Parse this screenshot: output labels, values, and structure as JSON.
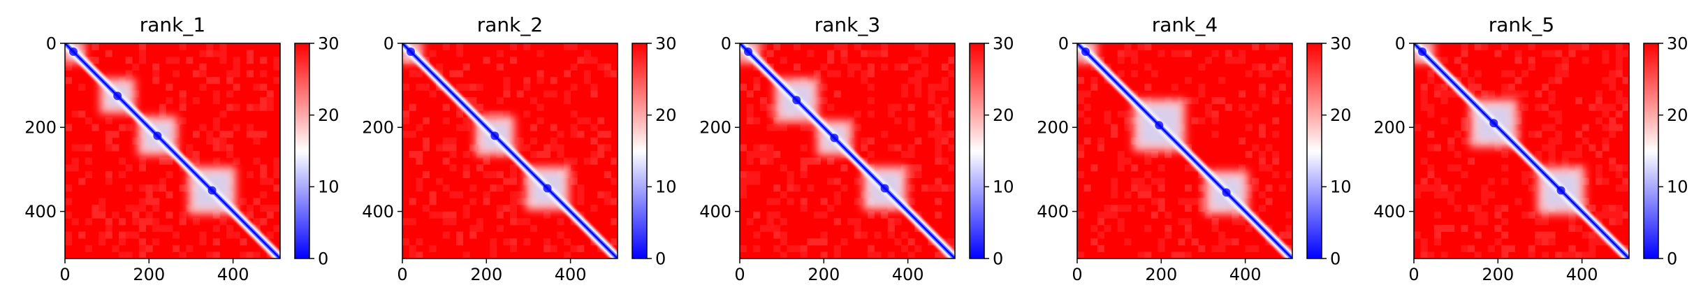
{
  "chart_data": [
    {
      "type": "heatmap",
      "title": "rank_1",
      "matrix_size": 512,
      "xlim": [
        0,
        512
      ],
      "ylim": [
        512,
        0
      ],
      "xticks": [
        0,
        200,
        400
      ],
      "yticks": [
        0,
        200,
        400
      ],
      "colorbar": {
        "ticks": [
          0,
          10,
          20,
          30
        ],
        "range": [
          0,
          30
        ],
        "colormap": "bwr"
      },
      "low_value_blocks": [
        [
          0,
          40
        ],
        [
          90,
          160
        ],
        [
          180,
          260
        ],
        [
          300,
          400
        ]
      ],
      "diagonal_value": 0,
      "off_diagonal_value": 30
    },
    {
      "type": "heatmap",
      "title": "rank_2",
      "matrix_size": 512,
      "xlim": [
        0,
        512
      ],
      "ylim": [
        512,
        0
      ],
      "xticks": [
        0,
        200,
        400
      ],
      "yticks": [
        0,
        200,
        400
      ],
      "colorbar": {
        "ticks": [
          0,
          10,
          20,
          30
        ],
        "range": [
          0,
          30
        ],
        "colormap": "bwr"
      },
      "low_value_blocks": [
        [
          0,
          40
        ],
        [
          180,
          260
        ],
        [
          300,
          390
        ]
      ],
      "diagonal_value": 0,
      "off_diagonal_value": 30
    },
    {
      "type": "heatmap",
      "title": "rank_3",
      "matrix_size": 512,
      "xlim": [
        0,
        512
      ],
      "ylim": [
        512,
        0
      ],
      "xticks": [
        0,
        200,
        400
      ],
      "yticks": [
        0,
        200,
        400
      ],
      "colorbar": {
        "ticks": [
          0,
          10,
          20,
          30
        ],
        "range": [
          0,
          30
        ],
        "colormap": "bwr"
      },
      "low_value_blocks": [
        [
          0,
          40
        ],
        [
          90,
          180
        ],
        [
          190,
          260
        ],
        [
          300,
          390
        ]
      ],
      "diagonal_value": 0,
      "off_diagonal_value": 30
    },
    {
      "type": "heatmap",
      "title": "rank_4",
      "matrix_size": 512,
      "xlim": [
        0,
        512
      ],
      "ylim": [
        512,
        0
      ],
      "xticks": [
        0,
        200,
        400
      ],
      "yticks": [
        0,
        200,
        400
      ],
      "colorbar": {
        "ticks": [
          0,
          10,
          20,
          30
        ],
        "range": [
          0,
          30
        ],
        "colormap": "bwr"
      },
      "low_value_blocks": [
        [
          0,
          40
        ],
        [
          140,
          250
        ],
        [
          310,
          400
        ]
      ],
      "diagonal_value": 0,
      "off_diagonal_value": 30
    },
    {
      "type": "heatmap",
      "title": "rank_5",
      "matrix_size": 512,
      "xlim": [
        0,
        512
      ],
      "ylim": [
        512,
        0
      ],
      "xticks": [
        0,
        200,
        400
      ],
      "yticks": [
        0,
        200,
        400
      ],
      "colorbar": {
        "ticks": [
          0,
          10,
          20,
          30
        ],
        "range": [
          0,
          30
        ],
        "colormap": "bwr"
      },
      "low_value_blocks": [
        [
          0,
          40
        ],
        [
          140,
          240
        ],
        [
          300,
          400
        ]
      ],
      "diagonal_value": 0,
      "off_diagonal_value": 30
    }
  ],
  "colors": {
    "low": "#0000ff",
    "mid": "#ffffff",
    "high": "#ff0000",
    "axis": "#000000"
  }
}
